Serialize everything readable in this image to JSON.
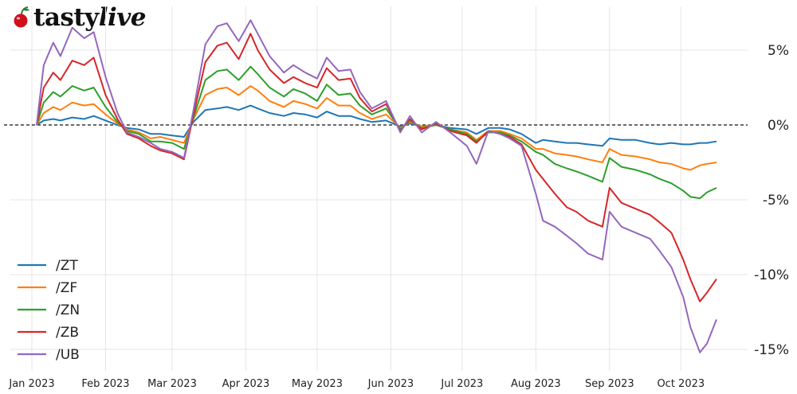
{
  "brand": {
    "name_bold": "tasty",
    "name_italic": "live",
    "icon": "cherry-icon"
  },
  "chart_data": {
    "type": "line",
    "ylim": [
      -16,
      8
    ],
    "y_ticks": [
      5,
      0,
      -5,
      -10,
      -15
    ],
    "y_tick_labels": [
      "5%",
      "0%",
      "-5%",
      "-10%",
      "-15%"
    ],
    "zero_line": "dashed",
    "x_range": [
      "2023-01-01",
      "2023-10-18"
    ],
    "x_ticks": [
      "2023-01-01",
      "2023-02-01",
      "2023-03-01",
      "2023-04-01",
      "2023-05-01",
      "2023-06-01",
      "2023-07-01",
      "2023-08-01",
      "2023-09-01",
      "2023-10-01"
    ],
    "x_tick_labels": [
      "Jan 2023",
      "Feb 2023",
      "Mar 2023",
      "Apr 2023",
      "May 2023",
      "Jun 2023",
      "Jul 2023",
      "Aug 2023",
      "Sep 2023",
      "Oct 2023"
    ],
    "grid": true,
    "legend_position": "bottom-left",
    "x": [
      "2023-01-03",
      "2023-01-06",
      "2023-01-10",
      "2023-01-13",
      "2023-01-18",
      "2023-01-23",
      "2023-01-27",
      "2023-02-01",
      "2023-02-06",
      "2023-02-10",
      "2023-02-15",
      "2023-02-20",
      "2023-02-24",
      "2023-03-01",
      "2023-03-06",
      "2023-03-10",
      "2023-03-15",
      "2023-03-20",
      "2023-03-24",
      "2023-03-29",
      "2023-04-03",
      "2023-04-06",
      "2023-04-11",
      "2023-04-17",
      "2023-04-21",
      "2023-04-26",
      "2023-05-01",
      "2023-05-05",
      "2023-05-10",
      "2023-05-15",
      "2023-05-19",
      "2023-05-24",
      "2023-05-30",
      "2023-06-05",
      "2023-06-09",
      "2023-06-14",
      "2023-06-20",
      "2023-06-26",
      "2023-07-03",
      "2023-07-07",
      "2023-07-12",
      "2023-07-17",
      "2023-07-21",
      "2023-07-26",
      "2023-08-01",
      "2023-08-04",
      "2023-08-09",
      "2023-08-14",
      "2023-08-18",
      "2023-08-23",
      "2023-08-29",
      "2023-09-01",
      "2023-09-06",
      "2023-09-12",
      "2023-09-18",
      "2023-09-22",
      "2023-09-27",
      "2023-10-02",
      "2023-10-05",
      "2023-10-09",
      "2023-10-12",
      "2023-10-16"
    ],
    "series": [
      {
        "name": "/ZT",
        "color": "#1f77b4",
        "values": [
          0,
          0.3,
          0.4,
          0.3,
          0.5,
          0.4,
          0.6,
          0.3,
          0,
          -0.2,
          -0.3,
          -0.6,
          -0.6,
          -0.7,
          -0.8,
          0.2,
          1.0,
          1.1,
          1.2,
          1.0,
          1.3,
          1.1,
          0.8,
          0.6,
          0.8,
          0.7,
          0.5,
          0.9,
          0.6,
          0.6,
          0.4,
          0.2,
          0.3,
          -0.1,
          0.1,
          -0.1,
          0,
          -0.2,
          -0.3,
          -0.6,
          -0.2,
          -0.2,
          -0.3,
          -0.6,
          -1.2,
          -1.0,
          -1.1,
          -1.2,
          -1.2,
          -1.3,
          -1.4,
          -0.9,
          -1.0,
          -1.0,
          -1.2,
          -1.3,
          -1.2,
          -1.3,
          -1.3,
          -1.2,
          -1.2,
          -1.1
        ]
      },
      {
        "name": "/ZF",
        "color": "#ff7f0e",
        "values": [
          0,
          0.8,
          1.2,
          1.0,
          1.5,
          1.3,
          1.4,
          0.7,
          0.1,
          -0.3,
          -0.5,
          -0.9,
          -0.8,
          -1.0,
          -1.2,
          0.4,
          2.0,
          2.4,
          2.5,
          2.0,
          2.6,
          2.3,
          1.6,
          1.2,
          1.6,
          1.4,
          1.1,
          1.8,
          1.3,
          1.3,
          0.8,
          0.4,
          0.7,
          -0.2,
          0.2,
          -0.1,
          0,
          -0.3,
          -0.5,
          -1.0,
          -0.4,
          -0.4,
          -0.6,
          -0.9,
          -1.6,
          -1.6,
          -1.9,
          -2.0,
          -2.1,
          -2.3,
          -2.5,
          -1.6,
          -2.0,
          -2.1,
          -2.3,
          -2.5,
          -2.6,
          -2.9,
          -3.0,
          -2.7,
          -2.6,
          -2.5
        ]
      },
      {
        "name": "/ZN",
        "color": "#2ca02c",
        "values": [
          0,
          1.5,
          2.2,
          1.9,
          2.6,
          2.3,
          2.5,
          1.2,
          0.2,
          -0.4,
          -0.6,
          -1.1,
          -1.1,
          -1.2,
          -1.6,
          0.5,
          3.0,
          3.6,
          3.7,
          3.0,
          3.9,
          3.4,
          2.5,
          1.9,
          2.4,
          2.1,
          1.6,
          2.7,
          2.0,
          2.1,
          1.3,
          0.7,
          1.1,
          -0.3,
          0.3,
          -0.2,
          0,
          -0.3,
          -0.6,
          -1.1,
          -0.5,
          -0.5,
          -0.7,
          -1.1,
          -1.8,
          -2.0,
          -2.6,
          -2.9,
          -3.1,
          -3.4,
          -3.8,
          -2.2,
          -2.8,
          -3.0,
          -3.3,
          -3.6,
          -3.9,
          -4.4,
          -4.8,
          -4.9,
          -4.5,
          -4.2
        ]
      },
      {
        "name": "/ZB",
        "color": "#d62728",
        "values": [
          0,
          2.5,
          3.5,
          3.0,
          4.3,
          4.0,
          4.5,
          2.0,
          0.4,
          -0.6,
          -0.9,
          -1.4,
          -1.7,
          -1.9,
          -2.3,
          0.7,
          4.2,
          5.3,
          5.5,
          4.4,
          6.1,
          5.0,
          3.7,
          2.8,
          3.2,
          2.8,
          2.5,
          3.8,
          3.0,
          3.1,
          1.8,
          0.9,
          1.4,
          -0.4,
          0.4,
          -0.3,
          0.1,
          -0.4,
          -0.7,
          -1.2,
          -0.4,
          -0.6,
          -0.8,
          -1.3,
          -3.0,
          -3.6,
          -4.6,
          -5.5,
          -5.8,
          -6.4,
          -6.8,
          -4.2,
          -5.2,
          -5.6,
          -6.0,
          -6.5,
          -7.2,
          -9.0,
          -10.3,
          -11.8,
          -11.2,
          -10.3
        ]
      },
      {
        "name": "/UB",
        "color": "#9467bd",
        "values": [
          0,
          4.0,
          5.5,
          4.6,
          6.5,
          5.8,
          6.2,
          3.2,
          0.8,
          -0.5,
          -0.8,
          -1.2,
          -1.6,
          -1.8,
          -2.2,
          1.0,
          5.4,
          6.6,
          6.8,
          5.6,
          7.0,
          6.1,
          4.6,
          3.5,
          4.0,
          3.5,
          3.1,
          4.5,
          3.6,
          3.7,
          2.2,
          1.1,
          1.6,
          -0.5,
          0.6,
          -0.5,
          0.2,
          -0.5,
          -1.4,
          -2.6,
          -0.4,
          -0.6,
          -0.9,
          -1.4,
          -4.6,
          -6.4,
          -6.8,
          -7.4,
          -7.9,
          -8.6,
          -9.0,
          -5.8,
          -6.8,
          -7.2,
          -7.6,
          -8.4,
          -9.5,
          -11.5,
          -13.5,
          -15.2,
          -14.6,
          -13.0
        ]
      }
    ]
  }
}
